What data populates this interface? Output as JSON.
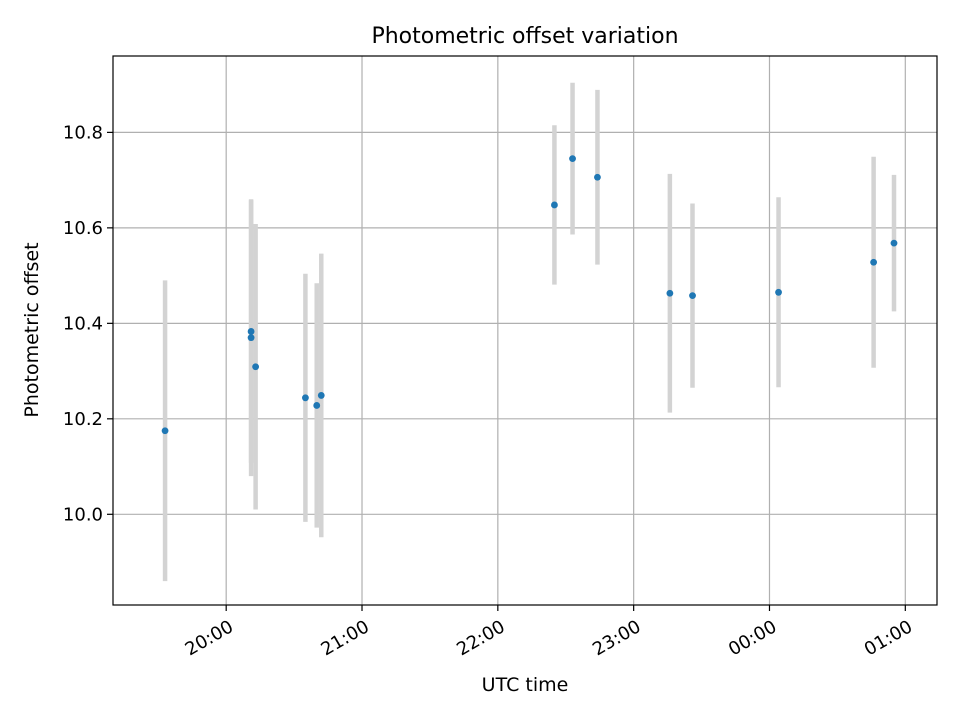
{
  "chart_data": {
    "type": "scatter",
    "title": "Photometric offset variation",
    "xlabel": "UTC time",
    "ylabel": "Photometric offset",
    "x_axis_type": "time",
    "xlim": [
      "19:10",
      "01:14"
    ],
    "ylim": [
      9.81,
      10.96
    ],
    "xticks": [
      {
        "time": "20:00",
        "label": "20:00"
      },
      {
        "time": "21:00",
        "label": "21:00"
      },
      {
        "time": "22:00",
        "label": "22:00"
      },
      {
        "time": "23:00",
        "label": "23:00"
      },
      {
        "time": "00:00",
        "label": "00:00"
      },
      {
        "time": "01:00",
        "label": "01:00"
      }
    ],
    "yticks": [
      10.0,
      10.2,
      10.4,
      10.6,
      10.8
    ],
    "ytick_labels": [
      "10.0",
      "10.2",
      "10.4",
      "10.6",
      "10.8"
    ],
    "grid": true,
    "colors": {
      "points": "#1f77b4",
      "errorbars": "#d3d3d3",
      "grid": "#b0b0b0"
    },
    "points": [
      {
        "time": "19:33",
        "y": 10.175,
        "err": 0.315
      },
      {
        "time": "20:11",
        "y": 10.383,
        "err": 0.275
      },
      {
        "time": "20:11",
        "y": 10.37,
        "err": 0.29
      },
      {
        "time": "20:13",
        "y": 10.309,
        "err": 0.299
      },
      {
        "time": "20:35",
        "y": 10.244,
        "err": 0.26
      },
      {
        "time": "20:40",
        "y": 10.228,
        "err": 0.256
      },
      {
        "time": "20:42",
        "y": 10.249,
        "err": 0.297
      },
      {
        "time": "22:25",
        "y": 10.648,
        "err": 0.167
      },
      {
        "time": "22:33",
        "y": 10.745,
        "err": 0.159
      },
      {
        "time": "22:44",
        "y": 10.706,
        "err": 0.183
      },
      {
        "time": "23:16",
        "y": 10.463,
        "err": 0.25
      },
      {
        "time": "23:26",
        "y": 10.458,
        "err": 0.193
      },
      {
        "time": "00:04",
        "y": 10.465,
        "err": 0.199
      },
      {
        "time": "00:46",
        "y": 10.528,
        "err": 0.221
      },
      {
        "time": "00:55",
        "y": 10.568,
        "err": 0.143
      }
    ]
  }
}
